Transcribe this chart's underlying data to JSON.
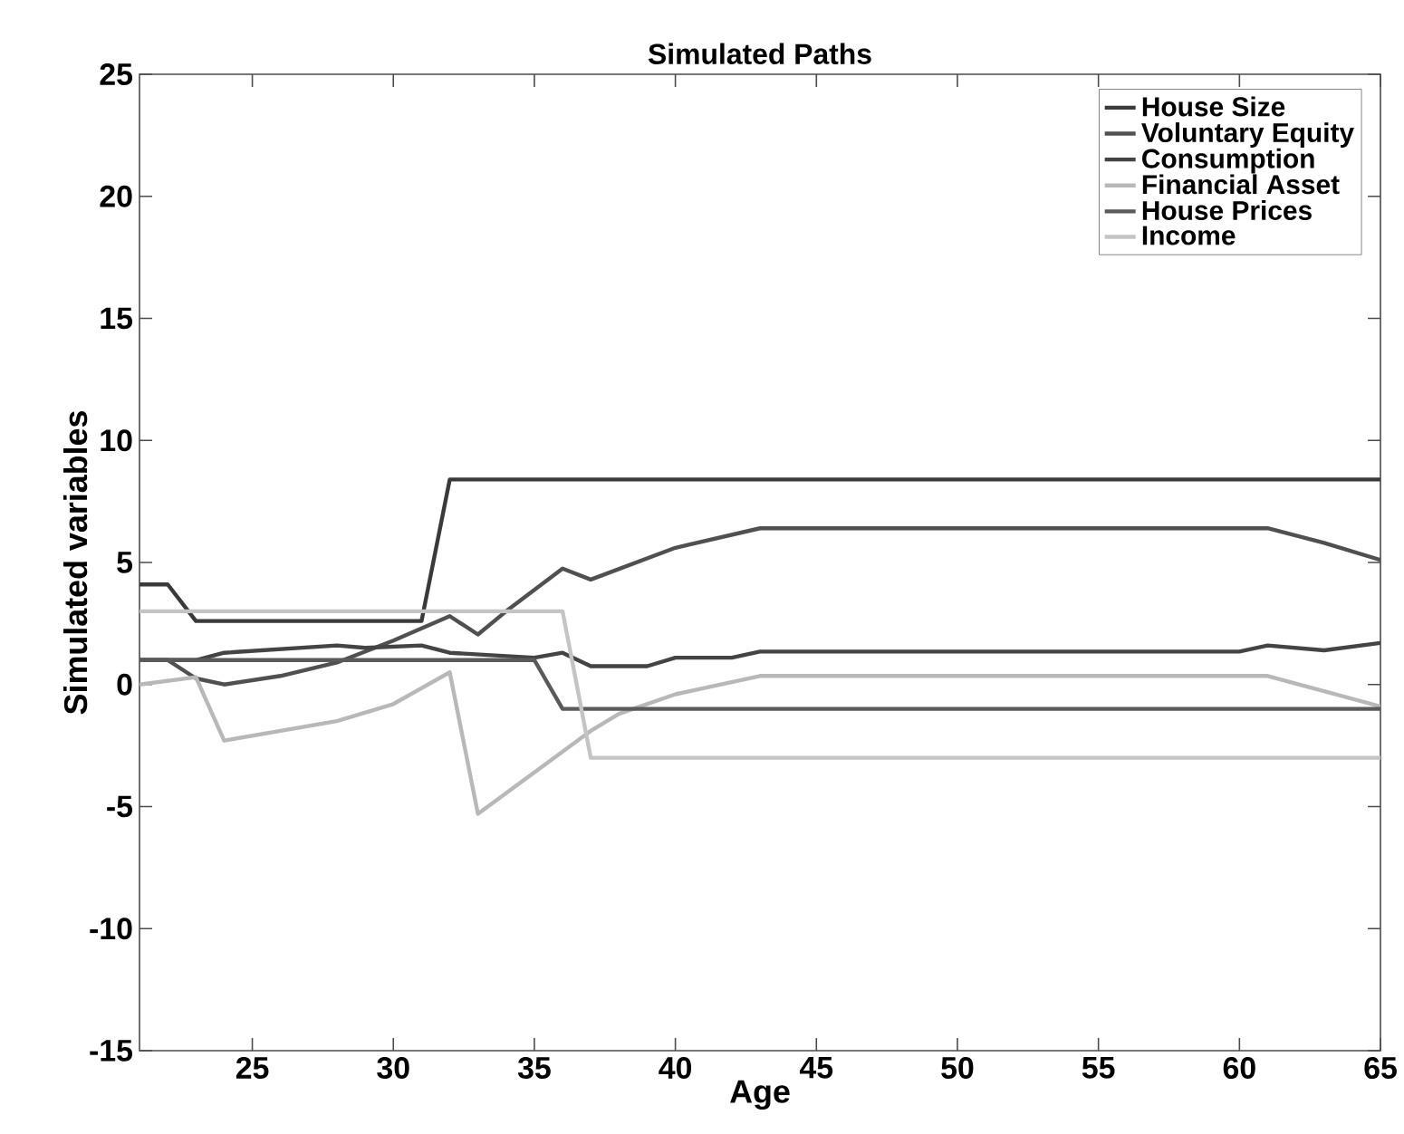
{
  "chart_data": {
    "type": "line",
    "title": "Simulated Paths",
    "xlabel": "Age",
    "ylabel": "Simulated variables",
    "xlim": [
      21,
      65
    ],
    "xticks": [
      25,
      30,
      35,
      40,
      45,
      50,
      55,
      60,
      65
    ],
    "ylim": [
      -15,
      25
    ],
    "yticks": [
      -15,
      -10,
      -5,
      0,
      5,
      10,
      15,
      20,
      25
    ],
    "grid": false,
    "legend": "top right",
    "marker": "none",
    "line_style": "solid",
    "series": [
      {
        "name": "House Size",
        "color": "#3a3a3a",
        "x": [
          21,
          22,
          23,
          31,
          32,
          65
        ],
        "values": [
          4.1,
          4.1,
          2.6,
          2.6,
          8.4,
          8.4
        ]
      },
      {
        "name": "Voluntary Equity",
        "color": "#505050",
        "x": [
          21,
          22,
          23,
          24,
          26,
          28,
          30,
          32,
          33,
          34,
          36,
          37,
          40,
          43,
          61,
          63,
          65
        ],
        "values": [
          1.0,
          1.0,
          0.25,
          0.0,
          0.35,
          0.9,
          1.8,
          2.8,
          2.05,
          3.0,
          4.75,
          4.3,
          5.6,
          6.4,
          6.4,
          5.8,
          5.1
        ]
      },
      {
        "name": "Consumption",
        "color": "#444444",
        "x": [
          21,
          23,
          24,
          28,
          29,
          31,
          32,
          35,
          36,
          37,
          39,
          40,
          42,
          43,
          60,
          61,
          63,
          65
        ],
        "values": [
          1.0,
          1.0,
          1.3,
          1.6,
          1.5,
          1.6,
          1.3,
          1.1,
          1.3,
          0.75,
          0.75,
          1.1,
          1.1,
          1.35,
          1.35,
          1.6,
          1.4,
          1.7
        ]
      },
      {
        "name": "Financial Asset",
        "color": "#b8b8b8",
        "x": [
          21,
          23,
          24,
          28,
          30,
          32,
          33,
          35,
          37,
          38,
          40,
          43,
          61,
          65
        ],
        "values": [
          0.0,
          0.3,
          -2.3,
          -1.5,
          -0.8,
          0.5,
          -5.3,
          -3.6,
          -1.9,
          -1.2,
          -0.4,
          0.35,
          0.35,
          -0.9
        ]
      },
      {
        "name": "House Prices",
        "color": "#5a5a5a",
        "x": [
          21,
          35,
          36,
          65
        ],
        "values": [
          1.0,
          1.0,
          -1.0,
          -1.0
        ]
      },
      {
        "name": "Income",
        "color": "#c4c4c4",
        "x": [
          21,
          36,
          37,
          65
        ],
        "values": [
          3.0,
          3.0,
          -3.0,
          -3.0
        ]
      }
    ]
  }
}
